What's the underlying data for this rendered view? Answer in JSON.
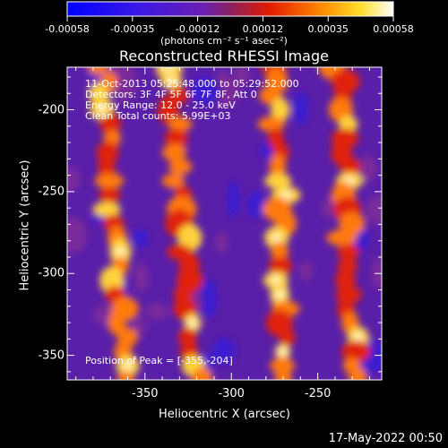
{
  "colorbar": {
    "ticks": [
      "-0.00058",
      "-0.00035",
      "-0.00012",
      "0.00012",
      "0.00035",
      "0.00058"
    ],
    "unit": "(photons cm⁻² s⁻¹ asec⁻²)"
  },
  "annotations": {
    "line1": "11-Oct-2013 05:25:48.000 to 05:29:52.000",
    "line2": "Detectors: 3F 4F 5F 6F 7F 8F, Att 0",
    "line3": "Energy Range: 12.0 - 25.0 keV",
    "line4": "Clean    Total counts: 5.99E+03",
    "peak": "Position of Peak = [-355,-204]"
  },
  "timestamp": "17-May-2022 00:50",
  "chart_data": {
    "type": "heatmap",
    "title": "Reconstructed RHESSI Image",
    "xlabel": "Heliocentric X (arcsec)",
    "ylabel": "Heliocentric Y (arcsec)",
    "xlim": [
      -395,
      -213
    ],
    "ylim": [
      -365,
      -174
    ],
    "xticks": [
      -350,
      -300,
      -250
    ],
    "xtick_labels": [
      "-350",
      "-300",
      "-250"
    ],
    "yticks": [
      -200,
      -250,
      -300,
      -350
    ],
    "ytick_labels": [
      "-200",
      "-250",
      "-300",
      "-350"
    ],
    "colorbar_range": [
      -0.00058,
      0.00058
    ],
    "colormap": "blue-purple-red-yellow-white",
    "bright_stripes": [
      {
        "x_top": -375,
        "x_bottom": -362,
        "intensity": 0.95
      },
      {
        "x_top": -335,
        "x_bottom": -320,
        "intensity": 0.85
      },
      {
        "x_top": -275,
        "x_bottom": -268,
        "intensity": 0.95
      },
      {
        "x_top": -238,
        "x_bottom": -228,
        "intensity": 0.75
      }
    ],
    "peak_position": [
      -355,
      -204
    ]
  }
}
